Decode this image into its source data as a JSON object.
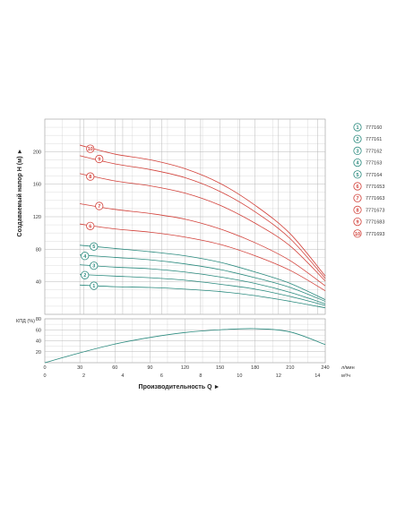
{
  "chart_data": [
    {
      "id": "head",
      "type": "line",
      "ylabel": "Создаваемый напор H (м) ►",
      "ylim": [
        0,
        240
      ],
      "yticks": [
        40,
        80,
        120,
        160,
        200
      ],
      "xlim_lpm": [
        0,
        240
      ],
      "grid": true,
      "legend_position": "right",
      "series": [
        {
          "name": "777160",
          "badge": "1",
          "color": "#2a8a7e",
          "x": [
            30,
            60,
            90,
            120,
            150,
            180,
            210,
            240
          ],
          "y": [
            36,
            34,
            33,
            31,
            28,
            23,
            16,
            8
          ]
        },
        {
          "name": "777161",
          "badge": "2",
          "color": "#2a8a7e",
          "x": [
            30,
            60,
            90,
            120,
            150,
            180,
            210,
            240
          ],
          "y": [
            49,
            47,
            45,
            42,
            37,
            31,
            22,
            11
          ]
        },
        {
          "name": "777162",
          "badge": "3",
          "color": "#2a8a7e",
          "x": [
            30,
            60,
            90,
            120,
            150,
            180,
            210,
            240
          ],
          "y": [
            61,
            58,
            56,
            52,
            46,
            38,
            27,
            13
          ]
        },
        {
          "name": "777163",
          "badge": "4",
          "color": "#2a8a7e",
          "x": [
            30,
            60,
            90,
            120,
            150,
            180,
            210,
            240
          ],
          "y": [
            73,
            70,
            67,
            62,
            55,
            45,
            33,
            16
          ]
        },
        {
          "name": "777164",
          "badge": "5",
          "color": "#2a8a7e",
          "x": [
            30,
            60,
            90,
            120,
            150,
            180,
            210,
            240
          ],
          "y": [
            85,
            81,
            77,
            72,
            64,
            52,
            38,
            18
          ]
        },
        {
          "name": "7771653",
          "badge": "6",
          "color": "#d2413a",
          "x": [
            30,
            60,
            90,
            120,
            150,
            180,
            210,
            240
          ],
          "y": [
            111,
            105,
            101,
            95,
            86,
            72,
            54,
            29
          ]
        },
        {
          "name": "7771663",
          "badge": "7",
          "color": "#d2413a",
          "x": [
            30,
            60,
            90,
            120,
            150,
            180,
            210,
            240
          ],
          "y": [
            136,
            129,
            124,
            117,
            105,
            88,
            66,
            35
          ]
        },
        {
          "name": "7771673",
          "badge": "8",
          "color": "#d2413a",
          "x": [
            30,
            60,
            90,
            120,
            150,
            180,
            210,
            240
          ],
          "y": [
            173,
            164,
            158,
            149,
            134,
            112,
            84,
            41
          ]
        },
        {
          "name": "7771683",
          "badge": "9",
          "color": "#d2413a",
          "x": [
            30,
            60,
            90,
            120,
            150,
            180,
            210,
            240
          ],
          "y": [
            195,
            185,
            178,
            168,
            151,
            126,
            93,
            44
          ]
        },
        {
          "name": "7771693",
          "badge": "10",
          "color": "#d2413a",
          "x": [
            30,
            60,
            90,
            120,
            150,
            180,
            210,
            240
          ],
          "y": [
            208,
            197,
            190,
            179,
            161,
            134,
            99,
            47
          ]
        }
      ]
    },
    {
      "id": "efficiency",
      "type": "line",
      "ylabel": "КПД (%)",
      "ylim": [
        0,
        80
      ],
      "yticks": [
        20,
        40,
        60,
        80
      ],
      "xlim": [
        0,
        240
      ],
      "grid": true,
      "series": [
        {
          "color": "#2a8a7e",
          "x": [
            0,
            30,
            60,
            90,
            120,
            150,
            180,
            210,
            240
          ],
          "y": [
            0,
            18,
            34,
            46,
            55,
            60,
            62,
            56,
            33
          ]
        }
      ]
    }
  ],
  "x_axis": {
    "title": "Производительность Q ►",
    "lpm_ticks": [
      "0",
      "30",
      "60",
      "90",
      "120",
      "150",
      "180",
      "210",
      "240"
    ],
    "lpm_unit": "л/мин",
    "m3h_ticks": [
      "0",
      "2",
      "4",
      "6",
      "8",
      "10",
      "12",
      "14"
    ],
    "m3h_unit": "м³/ч"
  },
  "colors": {
    "teal": "#2a8a7e",
    "red": "#d2413a",
    "grid": "#b8b8b8"
  }
}
